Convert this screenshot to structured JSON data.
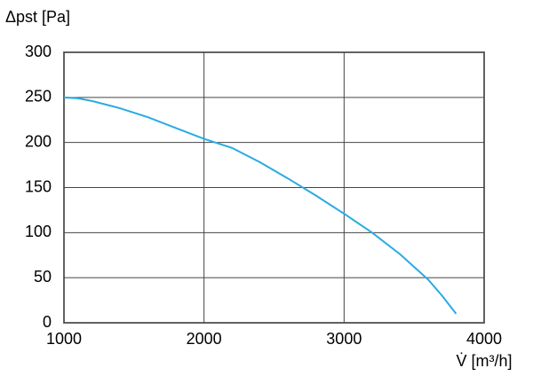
{
  "chart_data": {
    "type": "line",
    "y_label": "Δpst [Pa]",
    "x_label": "V̇ [m³/h]",
    "x": [
      1000,
      1100,
      1200,
      1400,
      1600,
      1800,
      2000,
      2200,
      2400,
      2600,
      2800,
      3000,
      3200,
      3400,
      3600,
      3700,
      3800
    ],
    "series": [
      {
        "color": "#29abe2",
        "values": [
          250,
          249,
          246,
          238,
          228,
          216,
          204,
          194,
          178,
          160,
          141,
          121,
          100,
          76,
          48,
          30,
          10
        ]
      }
    ],
    "xlim": [
      1000,
      4000
    ],
    "xticks": [
      1000,
      2000,
      3000,
      4000
    ],
    "ylim": [
      0,
      300
    ],
    "yticks": [
      0,
      50,
      100,
      150,
      200,
      250,
      300
    ],
    "grid": true
  }
}
